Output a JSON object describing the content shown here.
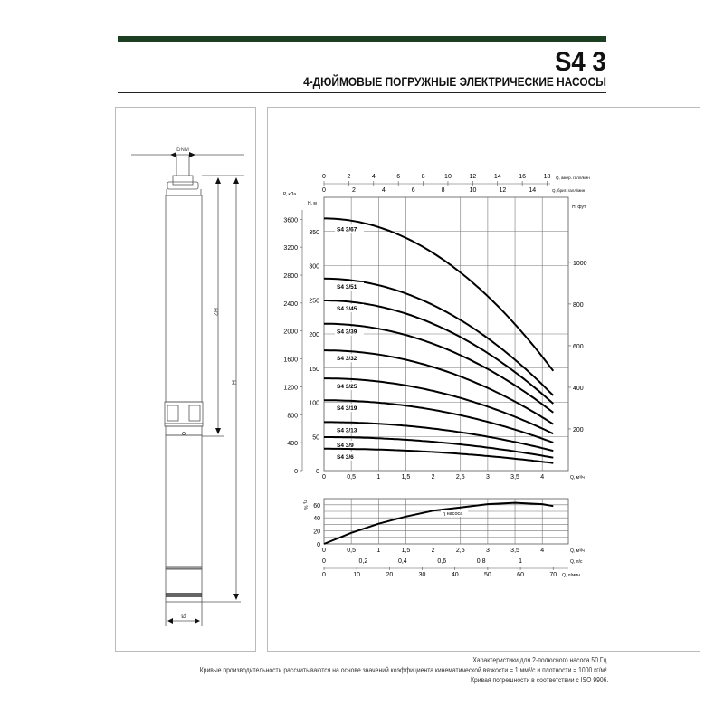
{
  "header": {
    "model": "S4 3",
    "subtitle": "4-ДЮЙМОВЫЕ ПОГРУЖНЫЕ ЭЛЕКТРИЧЕСКИЕ НАСОСЫ",
    "accent_color": "#1c3f22"
  },
  "drawing": {
    "dnm_label": "DNM",
    "h2_label": "H2",
    "h_label": "H",
    "diameter_label": "Ø"
  },
  "chart_data": [
    {
      "type": "line",
      "title": "",
      "xlabel": "Q, м³/ч",
      "ylabel": "H, м",
      "xlim": [
        0,
        4.5
      ],
      "ylim": [
        0,
        400
      ],
      "grid": true,
      "x_ticks": [
        "0",
        "0,5",
        "1",
        "1,5",
        "2",
        "2,5",
        "3",
        "3,5",
        "4"
      ],
      "y_ticks": [
        "0",
        "50",
        "100",
        "150",
        "200",
        "250",
        "300",
        "350"
      ],
      "secondary_axes": {
        "left_pressure": {
          "label": "P, кПа",
          "ticks": [
            "0",
            "400",
            "800",
            "1200",
            "1600",
            "2000",
            "2400",
            "2800",
            "3200",
            "3600"
          ]
        },
        "right_feet": {
          "label": "H, фут",
          "ticks": [
            "200",
            "400",
            "600",
            "800",
            "1000"
          ]
        },
        "top_us_gpm": {
          "label": "Q, амер. галл/мин",
          "ticks": [
            "0",
            "2",
            "4",
            "6",
            "8",
            "10",
            "12",
            "14",
            "16",
            "18"
          ]
        },
        "top_imp_gpm": {
          "label": "Q, брит. галл/мин",
          "ticks": [
            "0",
            "2",
            "4",
            "6",
            "8",
            "10",
            "12",
            "14"
          ]
        }
      },
      "x": [
        0,
        1,
        2,
        3,
        4,
        4.2
      ],
      "series": [
        {
          "name": "S4 3/67",
          "values": [
            369,
            356,
            318,
            255,
            167,
            146
          ]
        },
        {
          "name": "S4 3/51",
          "values": [
            281,
            271,
            242,
            194,
            126,
            110
          ]
        },
        {
          "name": "S4 3/45",
          "values": [
            249,
            240,
            215,
            172,
            112,
            98
          ]
        },
        {
          "name": "S4 3/39",
          "values": [
            215,
            208,
            186,
            149,
            97,
            85
          ]
        },
        {
          "name": "S4 3/32",
          "values": [
            176,
            170,
            152,
            121,
            78,
            68
          ]
        },
        {
          "name": "S4 3/25",
          "values": [
            135,
            130,
            117,
            94,
            62,
            54
          ]
        },
        {
          "name": "S4 3/19",
          "values": [
            103,
            99,
            89,
            71,
            47,
            41
          ]
        },
        {
          "name": "S4 3/13",
          "values": [
            71,
            69,
            61,
            50,
            33,
            29
          ]
        },
        {
          "name": "S4 3/9",
          "values": [
            49,
            47,
            42,
            34,
            22,
            19
          ]
        },
        {
          "name": "S4 3/6",
          "values": [
            32,
            31,
            27,
            21,
            13,
            11
          ]
        }
      ]
    },
    {
      "type": "line",
      "title": "",
      "xlabel": "Q, м³/ч",
      "ylabel": "η, %",
      "xlim": [
        0,
        4.5
      ],
      "ylim": [
        0,
        70
      ],
      "grid": true,
      "x_ticks": [
        "0",
        "0,5",
        "1",
        "1,5",
        "2",
        "2,5",
        "3",
        "3,5",
        "4"
      ],
      "y_ticks": [
        "0",
        "20",
        "40",
        "60"
      ],
      "secondary_axes": {
        "bottom_ls": {
          "label": "Q, л/с",
          "ticks": [
            "0",
            "0,2",
            "0,4",
            "0,6",
            "0,8",
            "1"
          ]
        },
        "bottom_lmin": {
          "label": "Q, л/мин",
          "ticks": [
            "0",
            "10",
            "20",
            "30",
            "40",
            "50",
            "60",
            "70"
          ]
        }
      },
      "x": [
        0,
        0.5,
        1,
        1.5,
        2,
        2.5,
        3,
        3.5,
        4,
        4.2
      ],
      "series": [
        {
          "name": "η насоса",
          "values": [
            0,
            17,
            31,
            42,
            51,
            56,
            61,
            63,
            61,
            58
          ]
        }
      ]
    }
  ],
  "notes": [
    "Характеристики для 2-полюсного насоса 50 Гц.",
    "Кривые производительности рассчитываются на основе значений коэффициента кинематической вязкости = 1 мм²/с и плотности = 1000 кг/м³.",
    "Кривая погрешности в соответствии с ISO 9906."
  ]
}
